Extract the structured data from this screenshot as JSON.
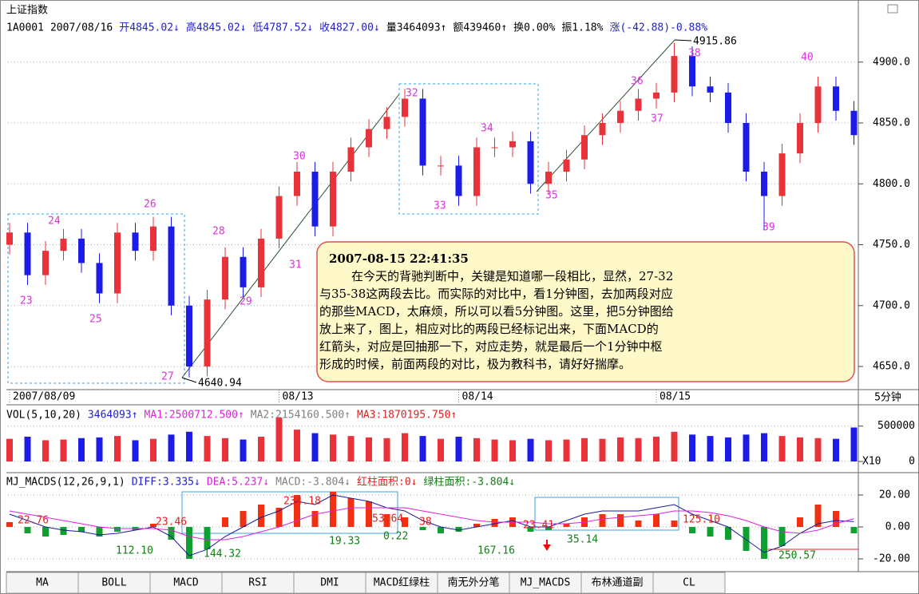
{
  "header": {
    "title": "上证指数",
    "info": [
      {
        "text": "1A0001",
        "color": "#000"
      },
      {
        "text": "2007/08/16",
        "color": "#000"
      },
      {
        "text": "开4845.02↓",
        "color": "#2020d0"
      },
      {
        "text": "高4845.02↓",
        "color": "#2020d0"
      },
      {
        "text": "低4787.52↓",
        "color": "#2020d0"
      },
      {
        "text": "收4827.00↓",
        "color": "#2020d0"
      },
      {
        "text": "量3464093↑",
        "color": "#000"
      },
      {
        "text": "额439460↑",
        "color": "#000"
      },
      {
        "text": "换0.00%",
        "color": "#000"
      },
      {
        "text": "振1.18%",
        "color": "#000"
      },
      {
        "text": "涨(-42.88)-0.88%",
        "color": "#2020d0"
      }
    ]
  },
  "chart_data": [
    {
      "type": "candlestick",
      "period": "5分钟",
      "up_color": "#e8333a",
      "down_color": "#1c1ce8",
      "categories": [
        "2007/08/09",
        null,
        null,
        null,
        null,
        null,
        null,
        null,
        null,
        null,
        null,
        null,
        null,
        null,
        null,
        "08/13",
        null,
        null,
        null,
        null,
        null,
        null,
        null,
        null,
        null,
        "08/14",
        null,
        null,
        null,
        null,
        null,
        null,
        null,
        null,
        null,
        null,
        "08/15",
        null,
        null,
        null,
        null,
        null,
        null,
        null,
        null,
        null,
        null,
        null
      ],
      "open": [
        4750,
        4760,
        4725,
        4745,
        4755,
        4735,
        4710,
        4760,
        4745,
        4765,
        4700,
        4650,
        4705,
        4740,
        4715,
        4755,
        4790,
        4810,
        4765,
        4810,
        4830,
        4845,
        4855,
        4870,
        4815,
        4815,
        4790,
        4830,
        4830,
        4835,
        4800,
        4810,
        4820,
        4840,
        4850,
        4860,
        4870,
        4875,
        4905,
        4880,
        4875,
        4850,
        4810,
        4790,
        4825,
        4850,
        4880,
        4860
      ],
      "high": [
        4768,
        4768,
        4753,
        4763,
        4763,
        4743,
        4768,
        4768,
        4773,
        4773,
        4708,
        4713,
        4748,
        4748,
        4763,
        4798,
        4818,
        4818,
        4818,
        4838,
        4853,
        4863,
        4878,
        4878,
        4823,
        4823,
        4838,
        4838,
        4843,
        4843,
        4818,
        4828,
        4848,
        4858,
        4868,
        4878,
        4883,
        4915.86,
        4913,
        4888,
        4883,
        4858,
        4818,
        4833,
        4858,
        4888,
        4888,
        4868
      ],
      "low": [
        4742,
        4717,
        4717,
        4737,
        4727,
        4702,
        4702,
        4737,
        4737,
        4692,
        4640.94,
        4642,
        4697,
        4707,
        4707,
        4747,
        4782,
        4757,
        4757,
        4802,
        4822,
        4837,
        4847,
        4807,
        4807,
        4782,
        4782,
        4822,
        4822,
        4792,
        4792,
        4802,
        4812,
        4832,
        4842,
        4852,
        4862,
        4867,
        4872,
        4867,
        4842,
        4802,
        4762,
        4782,
        4817,
        4842,
        4852,
        4832
      ],
      "close": [
        4760,
        4725,
        4745,
        4755,
        4735,
        4710,
        4760,
        4745,
        4765,
        4700,
        4650,
        4705,
        4740,
        4715,
        4755,
        4790,
        4810,
        4765,
        4810,
        4830,
        4845,
        4855,
        4870,
        4815,
        4815,
        4790,
        4830,
        4830,
        4835,
        4800,
        4810,
        4820,
        4840,
        4850,
        4860,
        4870,
        4875,
        4905,
        4880,
        4875,
        4850,
        4810,
        4790,
        4825,
        4850,
        4880,
        4860,
        4840
      ],
      "ylim": [
        4631,
        4951
      ],
      "yticks": [
        {
          "value": 4900,
          "label": "4900.0"
        },
        {
          "value": 4850,
          "label": "4850.0"
        },
        {
          "value": 4800,
          "label": "4800.0"
        },
        {
          "value": 4750,
          "label": "4750.0"
        },
        {
          "value": 4700,
          "label": "4700.0"
        },
        {
          "value": 4650,
          "label": "4650.0"
        }
      ],
      "annotations": [
        "23",
        "24",
        "25",
        "26",
        "27",
        "28",
        "29",
        "30",
        "31",
        "32",
        "33",
        "34",
        "35",
        "36",
        "37",
        "38",
        "39",
        "40"
      ],
      "extremes": [
        "4640.94",
        "4915.86"
      ],
      "note": {
        "time": "2007-08-15 22:41:35",
        "lines": [
          "在今天的背驰判断中，关键是知道哪一段相比，显然，27-32",
          "与35-38这两段去比。而实际的对比中，看1分钟图，去加两段对应",
          "的那些MACD，太麻烦，所以可以看5分钟图。这里，把5分钟图给",
          "放上来了，图上，相应对比的两段已经标记出来，下面MACD的",
          "红箭头，对应是回抽那一下，对应走势，就是最后一个1分钟中枢",
          "形成的时候，前面两段的对比，极为教科书，请好好揣摩。"
        ]
      }
    },
    {
      "type": "bar",
      "header": [
        {
          "text": "VOL(5,10,20)",
          "color": "#000"
        },
        {
          "text": "3464093↑",
          "color": "#2020d0"
        },
        {
          "text": "MA1:2500712.500↑",
          "color": "#e020e0"
        },
        {
          "text": "MA2:2154160.500↑",
          "color": "#808080"
        },
        {
          "text": "MA3:1870195.750↑",
          "color": "#e02020"
        }
      ],
      "values": [
        320000,
        350000,
        300000,
        310000,
        330000,
        340000,
        360000,
        300000,
        320000,
        380000,
        420000,
        360000,
        330000,
        310000,
        350000,
        620000,
        450000,
        400000,
        380000,
        360000,
        340000,
        330000,
        400000,
        360000,
        320000,
        350000,
        330000,
        310000,
        300000,
        320000,
        300000,
        310000,
        330000,
        320000,
        340000,
        330000,
        350000,
        420000,
        380000,
        360000,
        340000,
        380000,
        400000,
        360000,
        340000,
        330000,
        320000,
        480000
      ],
      "ylim": [
        0,
        790000
      ],
      "yticks": [
        500000,
        0
      ],
      "unit": "X10"
    },
    {
      "type": "macd",
      "header": [
        {
          "text": "MJ_MACDS(12,26,9,1)",
          "color": "#000"
        },
        {
          "text": "DIFF:3.335↓",
          "color": "#2020d0"
        },
        {
          "text": "DEA:5.237↓",
          "color": "#e020e0"
        },
        {
          "text": "MACD:-3.804↓",
          "color": "#808080"
        },
        {
          "text": "红柱面积:0↓",
          "color": "#e02020"
        },
        {
          "text": "绿柱面积:-3.804↓",
          "color": "#108010"
        }
      ],
      "pos_color": "#f03010",
      "neg_color": "#10a030",
      "values": [
        3,
        -4,
        -6,
        -5,
        -3,
        -6,
        -3,
        -2,
        2,
        -8,
        -20,
        -14,
        6,
        10,
        14,
        12,
        20,
        10,
        22,
        18,
        16,
        8,
        6,
        -2,
        -4,
        -3,
        2,
        5,
        6,
        -3,
        -2,
        2,
        6,
        8,
        8,
        4,
        8,
        4,
        -4,
        -6,
        -8,
        -15,
        -20,
        -12,
        6,
        14,
        10,
        -4
      ],
      "series": [
        {
          "name": "DIFF",
          "color": "#1a1a9a",
          "values": [
            8,
            4,
            0,
            -2,
            -3,
            -5,
            -4,
            -2,
            0,
            -6,
            -18,
            -14,
            -6,
            0,
            6,
            10,
            16,
            14,
            20,
            18,
            16,
            12,
            10,
            4,
            0,
            -2,
            0,
            2,
            4,
            0,
            0,
            4,
            8,
            10,
            10,
            10,
            12,
            14,
            8,
            4,
            0,
            -8,
            -16,
            -12,
            -4,
            2,
            4,
            3.3
          ]
        },
        {
          "name": "DEA",
          "color": "#e020e0",
          "values": [
            10,
            8,
            6,
            4,
            2,
            0,
            -1,
            -1,
            -1,
            -2,
            -6,
            -8,
            -8,
            -6,
            -3,
            0,
            4,
            8,
            10,
            12,
            12,
            12,
            12,
            10,
            8,
            6,
            4,
            3,
            3,
            3,
            2,
            2,
            3,
            5,
            6,
            7,
            8,
            10,
            10,
            9,
            7,
            4,
            0,
            -3,
            -4,
            -2,
            2,
            5.2
          ]
        }
      ],
      "ylim": [
        -27.5,
        32.5
      ],
      "yticks": [
        {
          "value": 20,
          "label": "20.00"
        },
        {
          "value": 0,
          "label": "0.00"
        },
        {
          "value": -20,
          "label": "-20.00"
        }
      ],
      "annotations": [
        {
          "text": "22.76",
          "color": "#e02020"
        },
        {
          "text": "112.10",
          "color": "#108010"
        },
        {
          "text": "23.46",
          "color": "#e02020"
        },
        {
          "text": "144.32",
          "color": "#108010"
        },
        {
          "text": "234.18",
          "color": "#e02020"
        },
        {
          "text": "19.33",
          "color": "#108010"
        },
        {
          "text": "53.64",
          "color": "#e02020"
        },
        {
          "text": "0.22",
          "color": "#108010"
        },
        {
          "text": "38",
          "color": "#e02020"
        },
        {
          "text": "167.16",
          "color": "#108010"
        },
        {
          "text": "23.41",
          "color": "#e02020"
        },
        {
          "text": "35.14",
          "color": "#108010"
        },
        {
          "text": "125.10",
          "color": "#e02020"
        },
        {
          "text": "250.57",
          "color": "#108010"
        }
      ]
    }
  ],
  "tabs": [
    "MA",
    "BOLL",
    "MACD",
    "RSI",
    "DMI",
    "MACD红绿柱",
    "南无外分笔",
    "MJ_MACDS",
    "布林通道副",
    "CL"
  ]
}
